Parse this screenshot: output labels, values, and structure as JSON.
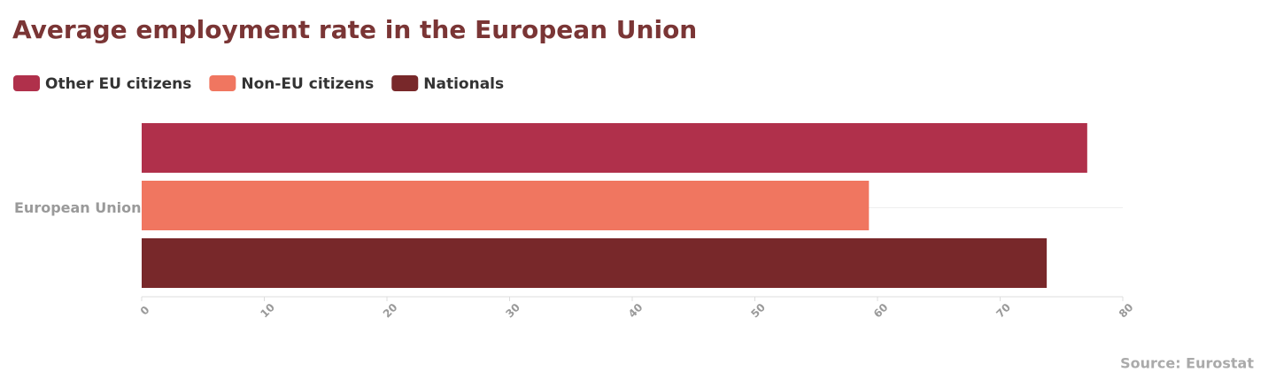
{
  "chart_data": {
    "type": "hbar",
    "title": "Average employment rate in the European Union",
    "categories": [
      "European Union"
    ],
    "series": [
      {
        "name": "Other EU citizens",
        "color": "#b0304b",
        "values": [
          77.1
        ]
      },
      {
        "name": "Non-EU citizens",
        "color": "#f07660",
        "values": [
          59.3
        ]
      },
      {
        "name": "Nationals",
        "color": "#78282a",
        "values": [
          73.8
        ]
      }
    ],
    "xlim": [
      0,
      80
    ],
    "xticks": [
      0,
      10,
      20,
      30,
      40,
      50,
      60,
      70,
      80
    ],
    "source": "Source: Eurostat"
  }
}
